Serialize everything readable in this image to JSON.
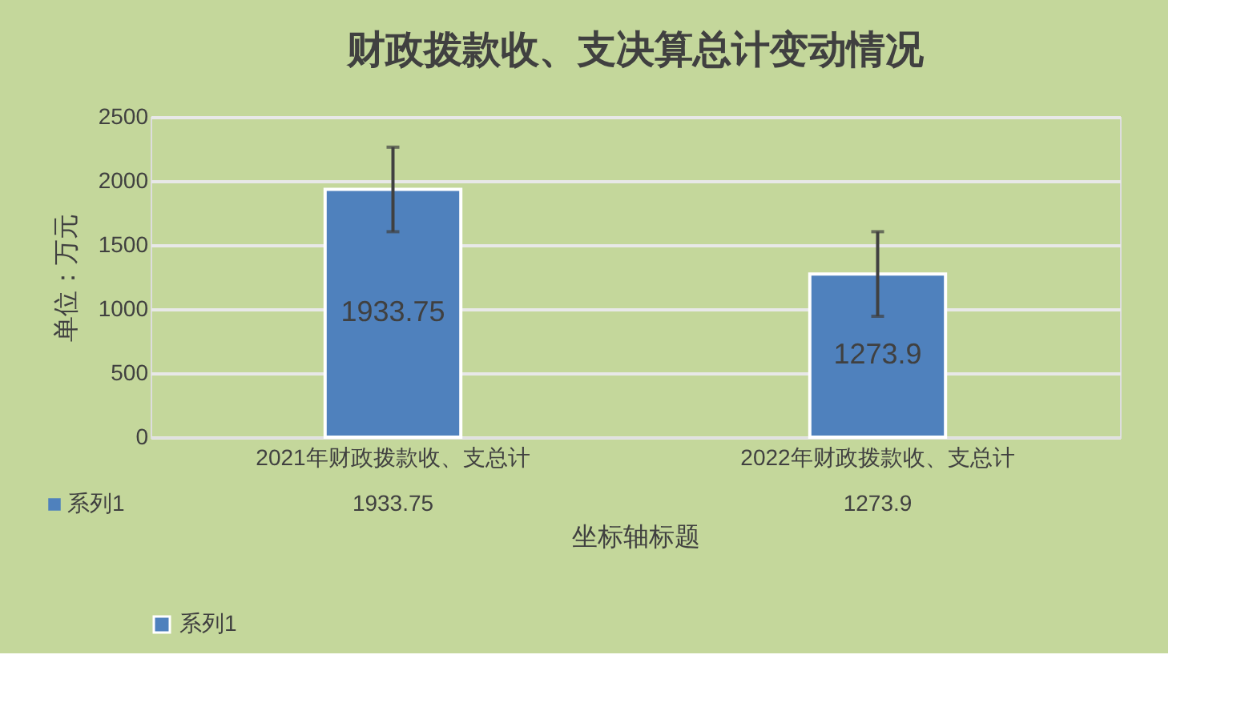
{
  "chart_data": {
    "type": "bar",
    "title": "财政拨款收、支决算总计变动情况",
    "categories": [
      "2021年财政拨款收、支总计",
      "2022年财政拨款收、支总计"
    ],
    "series": [
      {
        "name": "系列1",
        "color": "#4f81bd",
        "values": [
          1933.75,
          1273.9
        ],
        "errors": [
          330,
          330
        ]
      }
    ],
    "xlabel": "坐标轴标题",
    "ylabel": "单位：万元",
    "ylim": [
      0,
      2500
    ],
    "yticks": [
      0,
      500,
      1000,
      1500,
      2000,
      2500
    ],
    "annotations": [
      "1933.75",
      "1273.9"
    ],
    "grid": "y",
    "legend": "bottom",
    "data_labels": true
  }
}
